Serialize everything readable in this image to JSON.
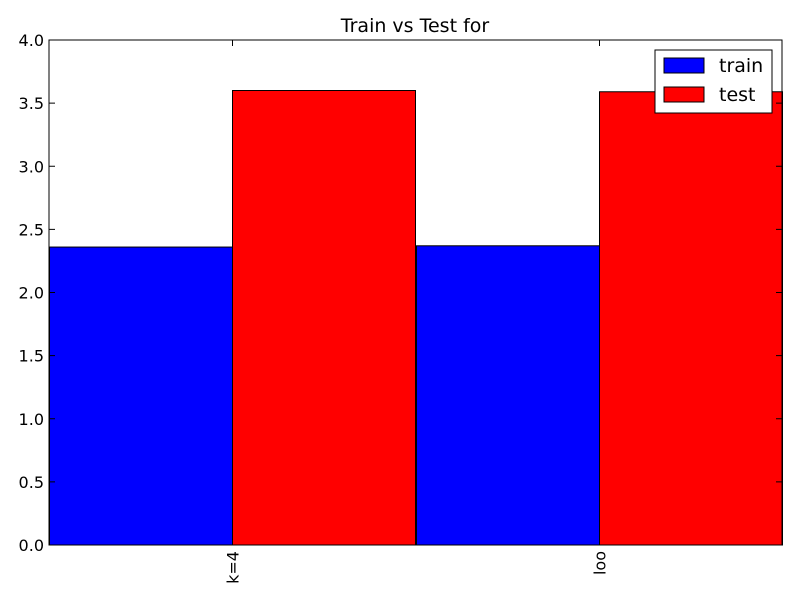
{
  "chart_data": {
    "type": "bar",
    "title": "Train vs Test for",
    "xlabel": "",
    "ylabel": "",
    "categories": [
      "k=4",
      "loo"
    ],
    "series": [
      {
        "name": "train",
        "color": "#0000ff",
        "values": [
          2.36,
          2.37
        ]
      },
      {
        "name": "test",
        "color": "#ff0000",
        "values": [
          3.6,
          3.59
        ]
      }
    ],
    "ylim": [
      0,
      4.0
    ],
    "yticks": [
      "0.0",
      "0.5",
      "1.0",
      "1.5",
      "2.0",
      "2.5",
      "3.0",
      "3.5",
      "4.0"
    ],
    "grid": false,
    "legend_position": "top-right"
  }
}
